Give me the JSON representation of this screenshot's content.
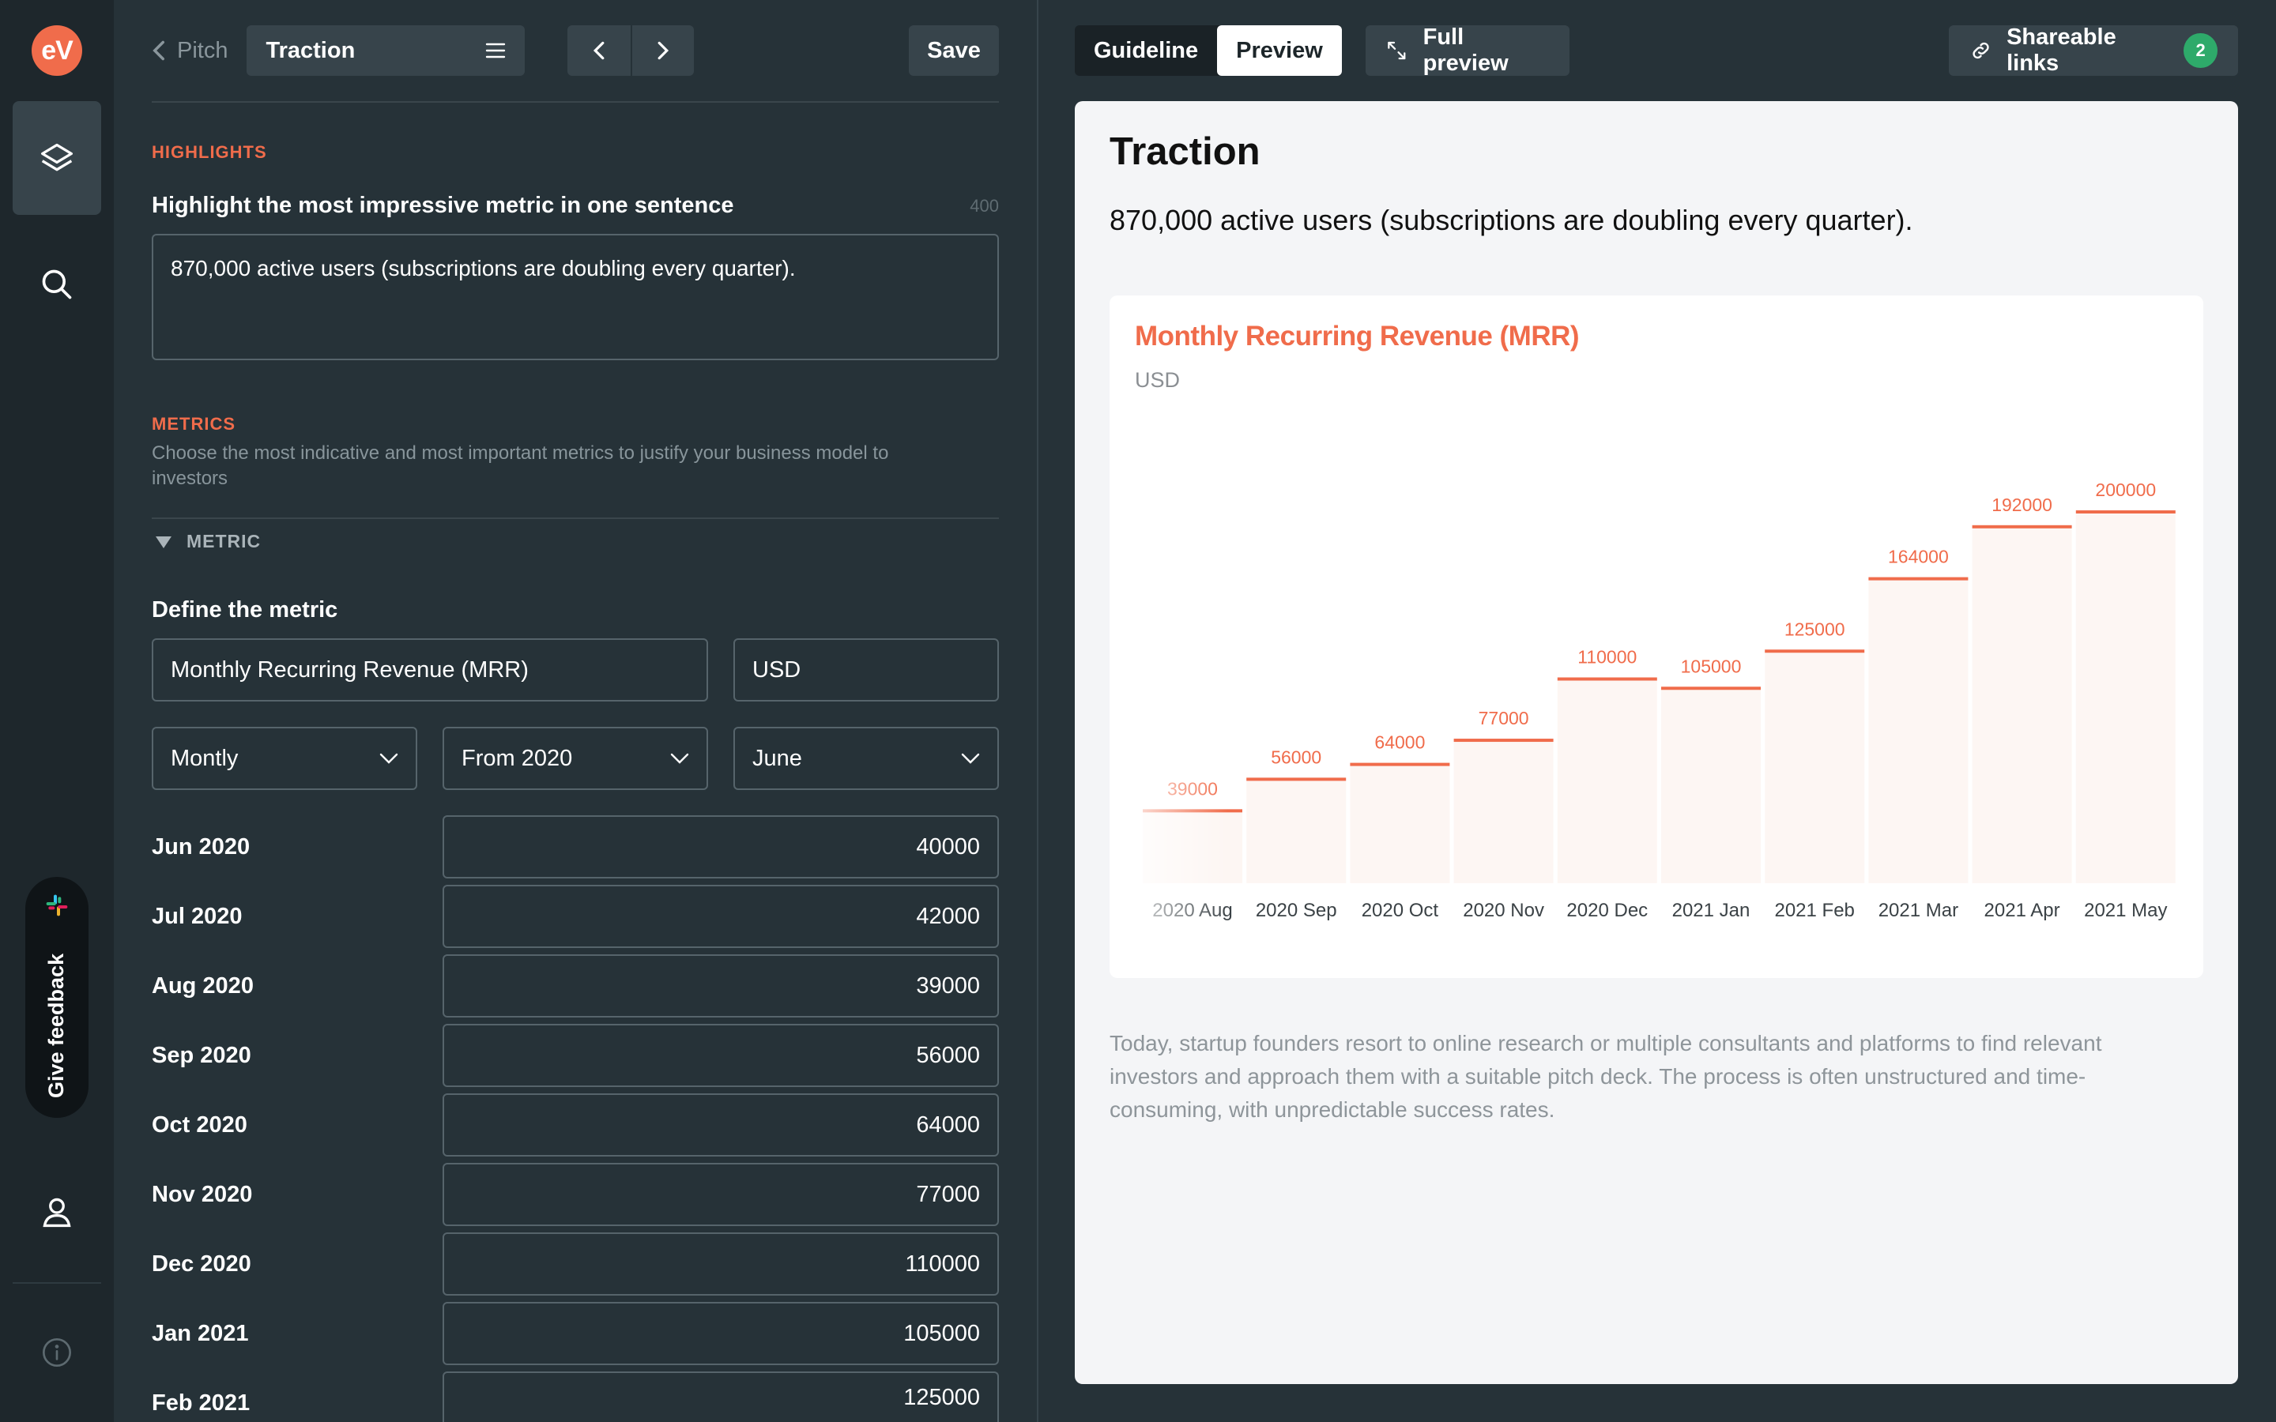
{
  "rail": {
    "logo_text": "eV",
    "feedback_label": "Give feedback",
    "icons": [
      "layers-icon",
      "search-icon",
      "slack-icon",
      "user-icon",
      "info-icon"
    ]
  },
  "editor": {
    "back_label": "Pitch",
    "section": "Traction",
    "save_label": "Save",
    "highlights": {
      "title": "HIGHLIGHTS",
      "label": "Highlight the most impressive metric in one sentence",
      "counter": "400",
      "value": "870,000 active users (subscriptions are doubling every quarter)."
    },
    "metrics": {
      "title": "METRICS",
      "description": "Choose the most indicative and most important metrics to justify your business model to investors",
      "toggle_label": "METRIC",
      "define_label": "Define the metric",
      "name_value": "Monthly Recurring Revenue (MRR)",
      "unit_value": "USD",
      "frequency": "Montly",
      "from": "From 2020",
      "month": "June",
      "rows": [
        {
          "label": "Jun 2020",
          "value": "40000"
        },
        {
          "label": "Jul 2020",
          "value": "42000"
        },
        {
          "label": "Aug 2020",
          "value": "39000"
        },
        {
          "label": "Sep 2020",
          "value": "56000"
        },
        {
          "label": "Oct 2020",
          "value": "64000"
        },
        {
          "label": "Nov 2020",
          "value": "77000"
        },
        {
          "label": "Dec 2020",
          "value": "110000"
        },
        {
          "label": "Jan 2021",
          "value": "105000"
        },
        {
          "label": "Feb 2021",
          "value": "125000"
        }
      ]
    }
  },
  "preview": {
    "tabs": [
      "Guideline",
      "Preview"
    ],
    "active_tab": "Preview",
    "full_preview_label": "Full preview",
    "share_label": "Shareable links",
    "share_count": "2",
    "title": "Traction",
    "highlight": "870,000 active users (subscriptions are doubling every quarter).",
    "description": "Today, startup founders resort to online research or multiple consultants and platforms to find relevant investors and approach them with a suitable pitch deck. The process is often unstructured and time-consuming, with unpredictable success rates."
  },
  "chart_data": {
    "type": "bar",
    "title": "Monthly Recurring Revenue (MRR)",
    "subtitle": "USD",
    "categories": [
      "2020 Aug",
      "2020 Sep",
      "2020 Oct",
      "2020 Nov",
      "2020 Dec",
      "2021 Jan",
      "2021 Feb",
      "2021 Mar",
      "2021 Apr",
      "2021 May"
    ],
    "values": [
      39000,
      56000,
      64000,
      77000,
      110000,
      105000,
      125000,
      164000,
      192000,
      200000
    ],
    "ylim": [
      0,
      200000
    ],
    "grid": false,
    "accent": "#f06c4b",
    "bar_fill": "#fdf6f3"
  }
}
